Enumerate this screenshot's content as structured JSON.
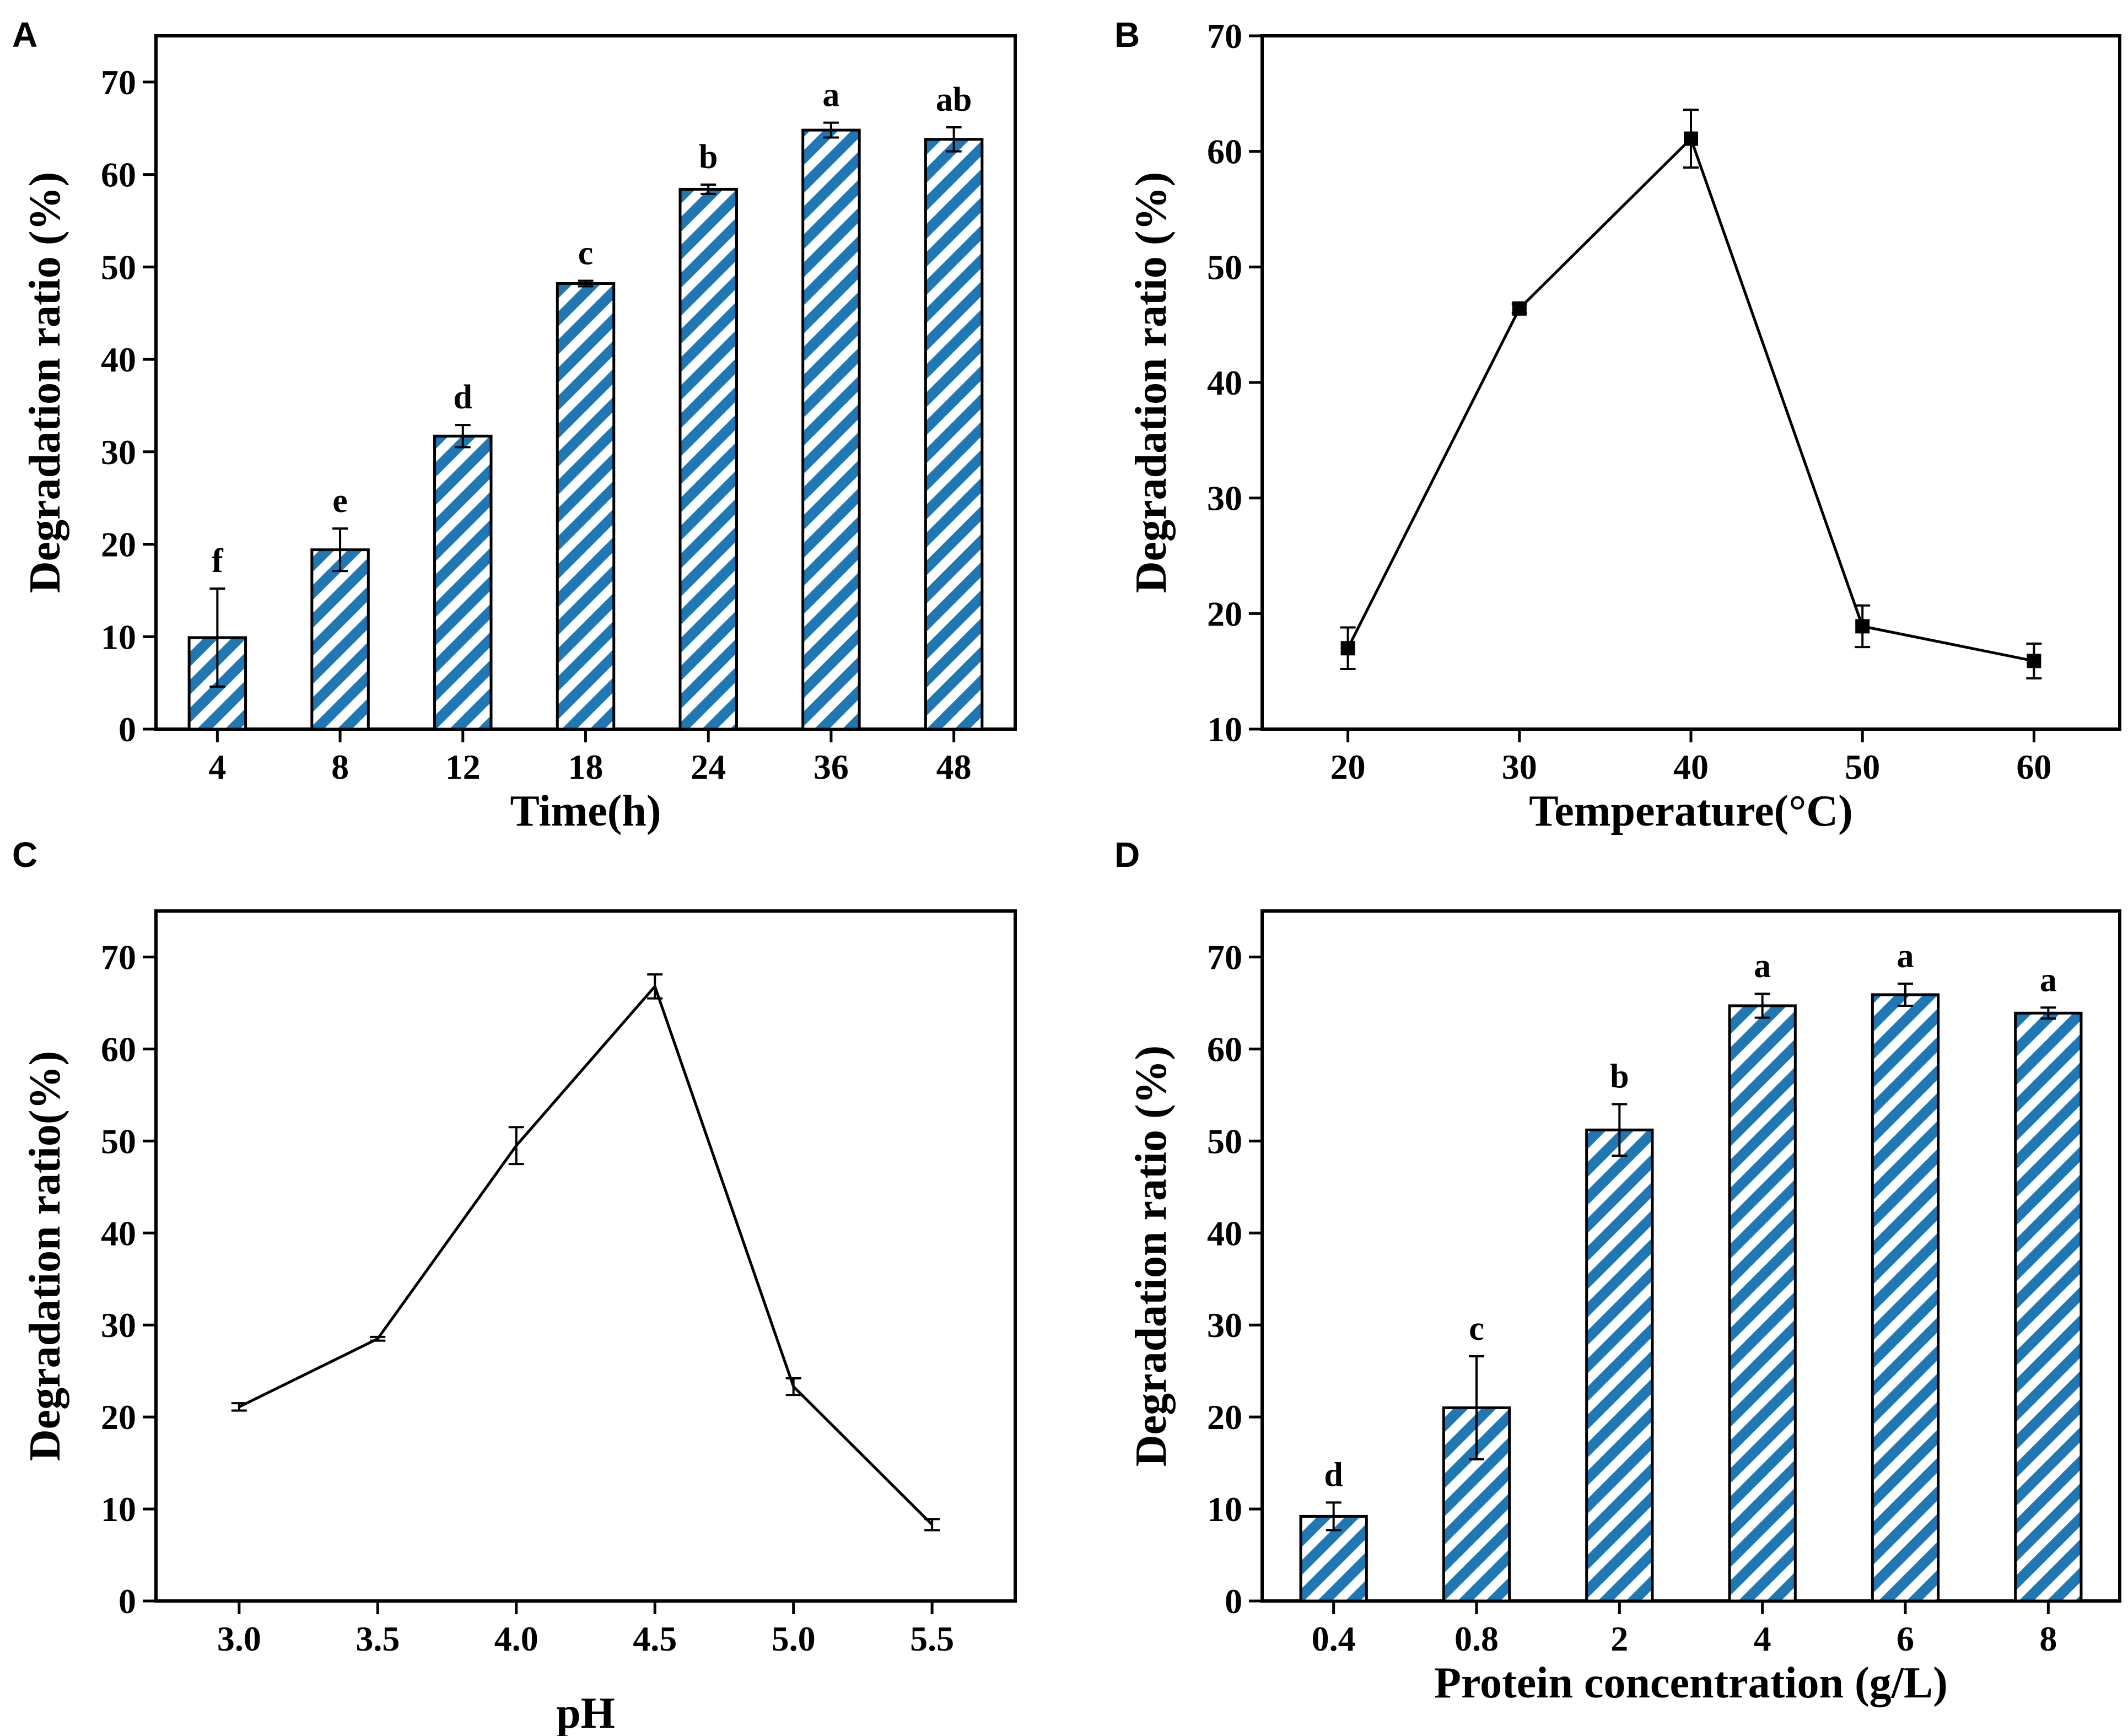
{
  "hatch_color": "#1f77b4",
  "chart_data": [
    {
      "panel": "A",
      "type": "bar",
      "categories": [
        "4",
        "8",
        "12",
        "18",
        "24",
        "36",
        "48"
      ],
      "values": [
        9.9,
        19.4,
        31.7,
        48.2,
        58.4,
        64.8,
        63.8
      ],
      "errors": [
        5.3,
        2.3,
        1.2,
        0.3,
        0.5,
        0.8,
        1.3
      ],
      "labels": [
        "f",
        "e",
        "d",
        "c",
        "b",
        "a",
        "ab"
      ],
      "xlabel": "Time(h)",
      "ylabel": "Degradation ratio (%)",
      "ylim": [
        0,
        75
      ],
      "yticks": [
        0,
        10,
        20,
        30,
        40,
        50,
        60,
        70
      ],
      "grid": false
    },
    {
      "panel": "B",
      "type": "line",
      "x": [
        20,
        30,
        40,
        50,
        60
      ],
      "y": [
        17.0,
        46.4,
        61.1,
        18.9,
        15.9
      ],
      "errors": [
        1.8,
        0.4,
        2.5,
        1.8,
        1.5
      ],
      "marker": "square",
      "xlabel": "Temperature(°C)",
      "ylabel": "Degradation ratio (%)",
      "xlim": [
        15,
        65
      ],
      "ylim": [
        10,
        70
      ],
      "xticks": [
        "20",
        "30",
        "40",
        "50",
        "60"
      ],
      "yticks": [
        10,
        20,
        30,
        40,
        50,
        60,
        70
      ],
      "grid": false
    },
    {
      "panel": "C",
      "type": "line",
      "x": [
        3.0,
        3.5,
        4.0,
        4.5,
        5.0,
        5.5
      ],
      "y": [
        21.1,
        28.5,
        49.5,
        66.8,
        23.3,
        8.3
      ],
      "errors": [
        0.4,
        0.2,
        2.0,
        1.3,
        0.9,
        0.6
      ],
      "marker": "none",
      "xlabel": "pH",
      "ylabel": "Degradation ratio(%)",
      "xlim": [
        2.7,
        5.8
      ],
      "ylim": [
        0,
        75
      ],
      "xticks": [
        "3.0",
        "3.5",
        "4.0",
        "4.5",
        "5.0",
        "5.5"
      ],
      "yticks": [
        0,
        10,
        20,
        30,
        40,
        50,
        60,
        70
      ],
      "grid": false
    },
    {
      "panel": "D",
      "type": "bar",
      "categories": [
        "0.4",
        "0.8",
        "2",
        "4",
        "6",
        "8"
      ],
      "values": [
        9.2,
        21.0,
        51.2,
        64.7,
        65.9,
        63.9
      ],
      "errors": [
        1.5,
        5.6,
        2.8,
        1.3,
        1.2,
        0.6
      ],
      "labels": [
        "d",
        "c",
        "b",
        "a",
        "a",
        "a"
      ],
      "xlabel": "Protein concentration (g/L)",
      "ylabel": "Degradation ratio (%)",
      "ylim": [
        0,
        75
      ],
      "yticks": [
        0,
        10,
        20,
        30,
        40,
        50,
        60,
        70
      ],
      "grid": false
    }
  ]
}
